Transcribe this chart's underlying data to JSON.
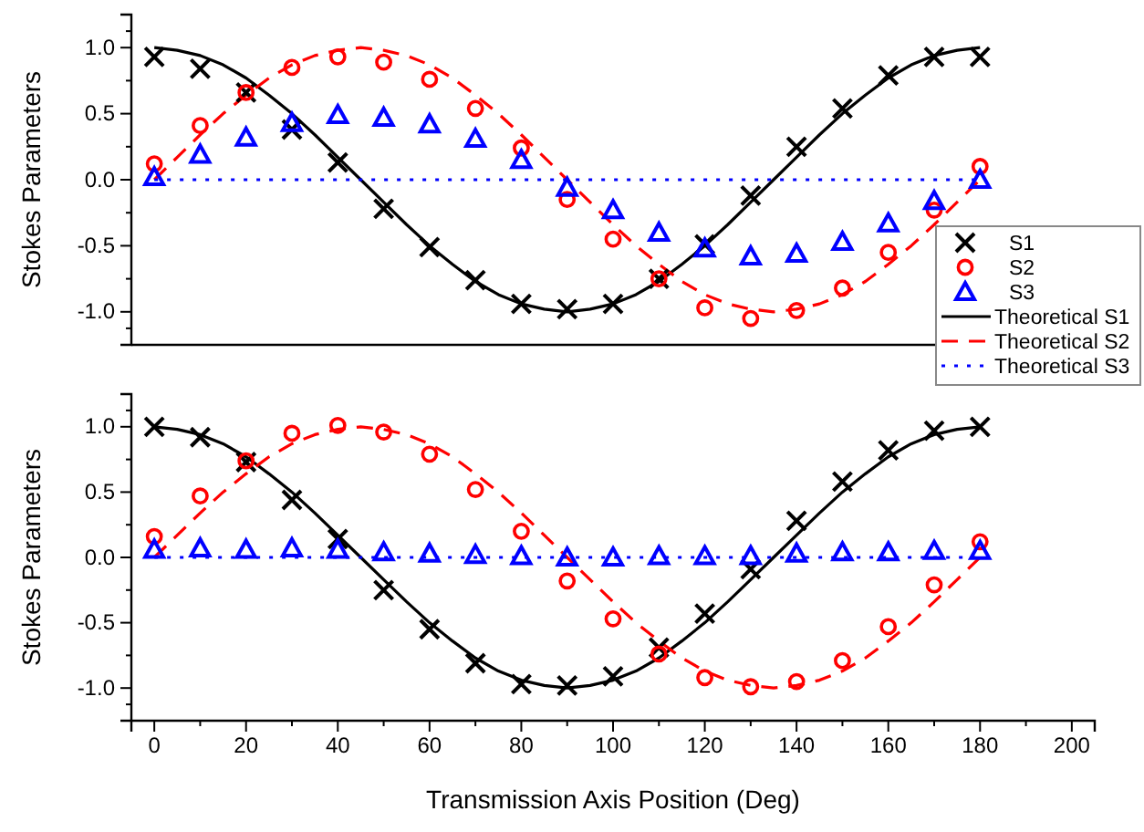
{
  "chart_data": [
    {
      "type": "scatter",
      "ylabel": "Stokes Parameters",
      "xlim": [
        -5,
        205
      ],
      "ylim": [
        -1.25,
        1.25
      ],
      "tick_labels": "y",
      "legend": "right",
      "grid": false,
      "xticks": [
        0,
        20,
        40,
        60,
        80,
        100,
        120,
        140,
        160,
        180,
        200
      ],
      "yticks": [
        {
          "value": -1,
          "label": "-1.0"
        },
        {
          "value": -0.5,
          "label": "-0.5"
        },
        {
          "value": 0,
          "label": "0.0"
        },
        {
          "value": 0.5,
          "label": "0.5"
        },
        {
          "value": 1,
          "label": "1.0"
        }
      ],
      "series": [
        {
          "name": "S1",
          "type": "scatter",
          "marker": "cross",
          "color": "#000000",
          "x": [
            0,
            10,
            20,
            30,
            40,
            50,
            60,
            70,
            80,
            90,
            100,
            110,
            120,
            130,
            140,
            150,
            160,
            170,
            180
          ],
          "values": [
            0.93,
            0.84,
            0.66,
            0.38,
            0.13,
            -0.22,
            -0.51,
            -0.76,
            -0.94,
            -0.98,
            -0.94,
            -0.75,
            -0.49,
            -0.12,
            0.25,
            0.54,
            0.79,
            0.93,
            0.93
          ]
        },
        {
          "name": "S2",
          "type": "scatter",
          "marker": "circle",
          "color": "#ff0000",
          "x": [
            0,
            10,
            20,
            30,
            40,
            50,
            60,
            70,
            80,
            90,
            100,
            110,
            120,
            130,
            140,
            150,
            160,
            170,
            180
          ],
          "values": [
            0.12,
            0.41,
            0.66,
            0.85,
            0.93,
            0.89,
            0.76,
            0.54,
            0.24,
            -0.15,
            -0.45,
            -0.75,
            -0.97,
            -1.05,
            -0.99,
            -0.82,
            -0.55,
            -0.23,
            0.1
          ]
        },
        {
          "name": "S3",
          "type": "scatter",
          "marker": "triangle",
          "color": "#0000ff",
          "x": [
            0,
            10,
            20,
            30,
            40,
            50,
            60,
            70,
            80,
            90,
            100,
            110,
            120,
            130,
            140,
            150,
            160,
            170,
            180
          ],
          "values": [
            0.02,
            0.19,
            0.32,
            0.43,
            0.49,
            0.47,
            0.42,
            0.31,
            0.15,
            -0.06,
            -0.23,
            -0.4,
            -0.52,
            -0.58,
            -0.56,
            -0.47,
            -0.33,
            -0.16,
            0.0
          ]
        },
        {
          "name": "Theoretical S1",
          "type": "line",
          "line_style": "solid",
          "color": "#000000",
          "x": [
            0,
            5,
            10,
            15,
            20,
            25,
            30,
            35,
            40,
            45,
            50,
            55,
            60,
            65,
            70,
            75,
            80,
            85,
            90,
            95,
            100,
            105,
            110,
            115,
            120,
            125,
            130,
            135,
            140,
            145,
            150,
            155,
            160,
            165,
            170,
            175,
            180
          ],
          "values": [
            1,
            0.98,
            0.94,
            0.87,
            0.77,
            0.64,
            0.5,
            0.34,
            0.17,
            0,
            -0.17,
            -0.34,
            -0.5,
            -0.64,
            -0.77,
            -0.87,
            -0.94,
            -0.98,
            -1,
            -0.98,
            -0.94,
            -0.87,
            -0.77,
            -0.64,
            -0.5,
            -0.34,
            -0.17,
            0,
            0.17,
            0.34,
            0.5,
            0.64,
            0.77,
            0.87,
            0.94,
            0.98,
            1
          ]
        },
        {
          "name": "Theoretical S2",
          "type": "line",
          "line_style": "dashed",
          "color": "#ff0000",
          "x": [
            0,
            5,
            10,
            15,
            20,
            25,
            30,
            35,
            40,
            45,
            50,
            55,
            60,
            65,
            70,
            75,
            80,
            85,
            90,
            95,
            100,
            105,
            110,
            115,
            120,
            125,
            130,
            135,
            140,
            145,
            150,
            155,
            160,
            165,
            170,
            175,
            180
          ],
          "values": [
            0,
            0.17,
            0.34,
            0.5,
            0.64,
            0.77,
            0.87,
            0.94,
            0.98,
            1,
            0.98,
            0.94,
            0.87,
            0.77,
            0.64,
            0.5,
            0.34,
            0.17,
            0,
            -0.17,
            -0.34,
            -0.5,
            -0.64,
            -0.77,
            -0.87,
            -0.94,
            -0.98,
            -1,
            -0.98,
            -0.94,
            -0.87,
            -0.77,
            -0.64,
            -0.5,
            -0.34,
            -0.17,
            0
          ]
        },
        {
          "name": "Theoretical S3",
          "type": "line",
          "line_style": "dotted",
          "color": "#0000ff",
          "x": [
            0,
            180
          ],
          "values": [
            0,
            0
          ]
        }
      ]
    },
    {
      "type": "scatter",
      "xlabel": "Transmission Axis Position (Deg)",
      "ylabel": "Stokes Parameters",
      "xlim": [
        -5,
        205
      ],
      "ylim": [
        -1.25,
        1.25
      ],
      "grid": false,
      "xticks": [
        0,
        20,
        40,
        60,
        80,
        100,
        120,
        140,
        160,
        180,
        200
      ],
      "yticks": [
        {
          "value": -1,
          "label": "-1.0"
        },
        {
          "value": -0.5,
          "label": "-0.5"
        },
        {
          "value": 0,
          "label": "0.0"
        },
        {
          "value": 0.5,
          "label": "0.5"
        },
        {
          "value": 1,
          "label": "1.0"
        }
      ],
      "series": [
        {
          "type": "scatter",
          "marker": "cross",
          "color": "#000000",
          "x": [
            0,
            10,
            20,
            30,
            40,
            50,
            60,
            70,
            80,
            90,
            100,
            110,
            120,
            130,
            140,
            150,
            160,
            170,
            180
          ],
          "values": [
            1.0,
            0.92,
            0.73,
            0.44,
            0.14,
            -0.25,
            -0.55,
            -0.81,
            -0.97,
            -0.98,
            -0.91,
            -0.69,
            -0.43,
            -0.09,
            0.28,
            0.58,
            0.82,
            0.97,
            1.0
          ]
        },
        {
          "type": "scatter",
          "marker": "circle",
          "color": "#ff0000",
          "x": [
            0,
            10,
            20,
            30,
            40,
            50,
            60,
            70,
            80,
            90,
            100,
            110,
            120,
            130,
            140,
            150,
            160,
            170,
            180
          ],
          "values": [
            0.16,
            0.47,
            0.74,
            0.95,
            1.01,
            0.96,
            0.79,
            0.52,
            0.2,
            -0.18,
            -0.47,
            -0.74,
            -0.92,
            -0.99,
            -0.95,
            -0.79,
            -0.53,
            -0.21,
            0.12
          ]
        },
        {
          "type": "scatter",
          "marker": "triangle",
          "color": "#0000ff",
          "x": [
            0,
            10,
            20,
            30,
            40,
            50,
            60,
            70,
            80,
            90,
            100,
            110,
            120,
            130,
            140,
            150,
            160,
            170,
            180
          ],
          "values": [
            0.06,
            0.07,
            0.06,
            0.07,
            0.06,
            0.04,
            0.03,
            0.02,
            0.01,
            0.0,
            0.0,
            0.01,
            0.01,
            0.01,
            0.03,
            0.04,
            0.04,
            0.05,
            0.05
          ]
        },
        {
          "type": "line",
          "line_style": "solid",
          "color": "#000000",
          "x": [
            0,
            5,
            10,
            15,
            20,
            25,
            30,
            35,
            40,
            45,
            50,
            55,
            60,
            65,
            70,
            75,
            80,
            85,
            90,
            95,
            100,
            105,
            110,
            115,
            120,
            125,
            130,
            135,
            140,
            145,
            150,
            155,
            160,
            165,
            170,
            175,
            180
          ],
          "values": [
            1,
            0.98,
            0.94,
            0.87,
            0.77,
            0.64,
            0.5,
            0.34,
            0.17,
            0,
            -0.17,
            -0.34,
            -0.5,
            -0.64,
            -0.77,
            -0.87,
            -0.94,
            -0.98,
            -1,
            -0.98,
            -0.94,
            -0.87,
            -0.77,
            -0.64,
            -0.5,
            -0.34,
            -0.17,
            0,
            0.17,
            0.34,
            0.5,
            0.64,
            0.77,
            0.87,
            0.94,
            0.98,
            1
          ]
        },
        {
          "type": "line",
          "line_style": "dashed",
          "color": "#ff0000",
          "x": [
            0,
            5,
            10,
            15,
            20,
            25,
            30,
            35,
            40,
            45,
            50,
            55,
            60,
            65,
            70,
            75,
            80,
            85,
            90,
            95,
            100,
            105,
            110,
            115,
            120,
            125,
            130,
            135,
            140,
            145,
            150,
            155,
            160,
            165,
            170,
            175,
            180
          ],
          "values": [
            0,
            0.17,
            0.34,
            0.5,
            0.64,
            0.77,
            0.87,
            0.94,
            0.98,
            1,
            0.98,
            0.94,
            0.87,
            0.77,
            0.64,
            0.5,
            0.34,
            0.17,
            0,
            -0.17,
            -0.34,
            -0.5,
            -0.64,
            -0.77,
            -0.87,
            -0.94,
            -0.98,
            -1,
            -0.98,
            -0.94,
            -0.87,
            -0.77,
            -0.64,
            -0.5,
            -0.34,
            -0.17,
            0
          ]
        },
        {
          "type": "line",
          "line_style": "dotted",
          "color": "#0000ff",
          "x": [
            0,
            180
          ],
          "values": [
            0,
            0
          ]
        }
      ]
    }
  ]
}
